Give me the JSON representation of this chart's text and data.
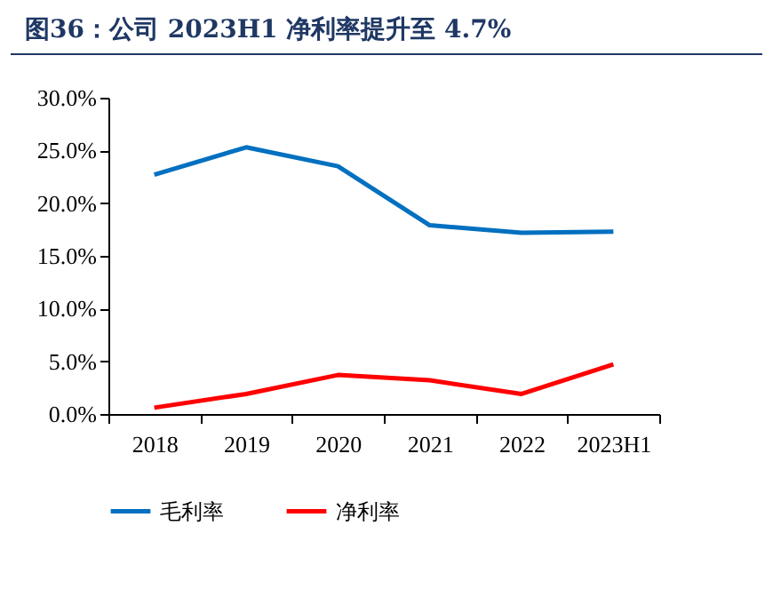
{
  "chart_data": {
    "type": "line",
    "title": "图36：公司 2023H1 净利率提升至 4.7%",
    "categories": [
      "2018",
      "2019",
      "2020",
      "2021",
      "2022",
      "2023H1"
    ],
    "series": [
      {
        "name": "毛利率",
        "color": "#0070c0",
        "values": [
          22.7,
          25.3,
          23.5,
          17.9,
          17.2,
          17.3
        ]
      },
      {
        "name": "净利率",
        "color": "#ff0000",
        "values": [
          0.6,
          1.9,
          3.7,
          3.2,
          1.9,
          4.7
        ]
      }
    ],
    "ylim": [
      0,
      30
    ],
    "yticks": [
      {
        "value": 0,
        "label": "0.0%"
      },
      {
        "value": 5,
        "label": "5.0%"
      },
      {
        "value": 10,
        "label": "10.0%"
      },
      {
        "value": 15,
        "label": "15.0%"
      },
      {
        "value": 20,
        "label": "20.0%"
      },
      {
        "value": 25,
        "label": "25.0%"
      },
      {
        "value": 30,
        "label": "30.0%"
      }
    ],
    "grid": false,
    "legend": "bottom",
    "marker": "none",
    "line_style": "solid"
  }
}
